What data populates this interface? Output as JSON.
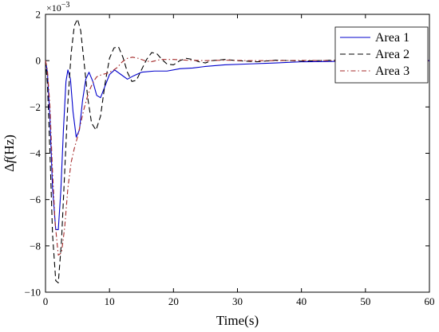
{
  "chart_data": {
    "type": "line",
    "title": "",
    "xlabel": "Time(s)",
    "ylabel_prefix": "Δ",
    "ylabel_italic": "f",
    "ylabel_suffix": "(Hz)",
    "y_scale_label": "×10",
    "y_scale_exponent": "−3",
    "xlim": [
      0,
      60
    ],
    "ylim": [
      -10,
      2
    ],
    "xticks": [
      0,
      10,
      20,
      30,
      40,
      50,
      60
    ],
    "xtick_labels": [
      "0",
      "10",
      "20",
      "30",
      "40",
      "50",
      "60"
    ],
    "yticks": [
      -10,
      -8,
      -6,
      -4,
      -2,
      0,
      2
    ],
    "ytick_labels": [
      "−10",
      "−8",
      "−6",
      "−4",
      "−2",
      "0",
      "2"
    ],
    "grid": false,
    "legend_position": "top-right",
    "series": [
      {
        "name": "Area 1",
        "color": "#0000cc",
        "style": "solid",
        "points": [
          [
            0,
            0
          ],
          [
            0.3,
            -0.5
          ],
          [
            0.7,
            -2.5
          ],
          [
            1.1,
            -5.5
          ],
          [
            1.6,
            -7.3
          ],
          [
            2.0,
            -7.3
          ],
          [
            2.4,
            -5.6
          ],
          [
            2.8,
            -3.0
          ],
          [
            3.2,
            -0.9
          ],
          [
            3.5,
            -0.4
          ],
          [
            3.9,
            -0.8
          ],
          [
            4.3,
            -2.2
          ],
          [
            4.8,
            -3.3
          ],
          [
            5.3,
            -3.0
          ],
          [
            5.8,
            -1.7
          ],
          [
            6.3,
            -0.8
          ],
          [
            6.8,
            -0.5
          ],
          [
            7.4,
            -0.9
          ],
          [
            8.0,
            -1.5
          ],
          [
            8.6,
            -1.6
          ],
          [
            9.3,
            -1.1
          ],
          [
            10.0,
            -0.6
          ],
          [
            10.8,
            -0.4
          ],
          [
            11.8,
            -0.6
          ],
          [
            12.8,
            -0.8
          ],
          [
            13.8,
            -0.65
          ],
          [
            15.0,
            -0.5
          ],
          [
            17,
            -0.45
          ],
          [
            19,
            -0.45
          ],
          [
            21,
            -0.35
          ],
          [
            23,
            -0.32
          ],
          [
            25,
            -0.25
          ],
          [
            28,
            -0.18
          ],
          [
            32,
            -0.14
          ],
          [
            36,
            -0.1
          ],
          [
            40,
            -0.05
          ],
          [
            44,
            -0.04
          ],
          [
            48,
            -0.02
          ],
          [
            52,
            0.0
          ],
          [
            56,
            0.0
          ],
          [
            60,
            0.0
          ]
        ]
      },
      {
        "name": "Area 2",
        "color": "#000000",
        "style": "dashed",
        "points": [
          [
            0,
            0
          ],
          [
            0.3,
            -1.0
          ],
          [
            0.7,
            -4.0
          ],
          [
            1.1,
            -7.5
          ],
          [
            1.6,
            -9.5
          ],
          [
            2.0,
            -9.6
          ],
          [
            2.5,
            -7.8
          ],
          [
            3.0,
            -4.8
          ],
          [
            3.5,
            -1.8
          ],
          [
            4.0,
            0.3
          ],
          [
            4.5,
            1.5
          ],
          [
            5.0,
            1.8
          ],
          [
            5.5,
            1.3
          ],
          [
            6.0,
            0.0
          ],
          [
            6.6,
            -1.6
          ],
          [
            7.2,
            -2.7
          ],
          [
            7.9,
            -3.0
          ],
          [
            8.6,
            -2.4
          ],
          [
            9.3,
            -1.0
          ],
          [
            10.0,
            0.1
          ],
          [
            10.7,
            0.55
          ],
          [
            11.4,
            0.6
          ],
          [
            12.1,
            0.15
          ],
          [
            12.8,
            -0.5
          ],
          [
            13.5,
            -0.9
          ],
          [
            14.2,
            -0.85
          ],
          [
            15.0,
            -0.4
          ],
          [
            15.8,
            0.05
          ],
          [
            16.6,
            0.35
          ],
          [
            17.4,
            0.3
          ],
          [
            18.2,
            0.05
          ],
          [
            19.0,
            -0.15
          ],
          [
            20.0,
            -0.18
          ],
          [
            21,
            0.0
          ],
          [
            22,
            0.1
          ],
          [
            23,
            0.05
          ],
          [
            24,
            -0.05
          ],
          [
            25,
            -0.1
          ],
          [
            26,
            0.0
          ],
          [
            28,
            0.05
          ],
          [
            30,
            0.0
          ],
          [
            33,
            -0.05
          ],
          [
            36,
            0.02
          ],
          [
            40,
            -0.02
          ],
          [
            45,
            0.02
          ],
          [
            50,
            -0.01
          ],
          [
            55,
            0.0
          ],
          [
            60,
            0.0
          ]
        ]
      },
      {
        "name": "Area 3",
        "color": "#a52a2a",
        "style": "dashdot",
        "points": [
          [
            0,
            0
          ],
          [
            0.3,
            -0.4
          ],
          [
            0.7,
            -2.0
          ],
          [
            1.1,
            -4.8
          ],
          [
            1.5,
            -7.0
          ],
          [
            2.0,
            -8.4
          ],
          [
            2.5,
            -8.3
          ],
          [
            3.0,
            -7.2
          ],
          [
            3.5,
            -5.5
          ],
          [
            4.0,
            -4.4
          ],
          [
            4.5,
            -3.8
          ],
          [
            5.0,
            -3.3
          ],
          [
            5.5,
            -2.7
          ],
          [
            6.0,
            -2.1
          ],
          [
            6.5,
            -1.6
          ],
          [
            7.0,
            -1.2
          ],
          [
            7.5,
            -0.9
          ],
          [
            8.0,
            -0.7
          ],
          [
            8.8,
            -0.6
          ],
          [
            9.6,
            -0.55
          ],
          [
            10.4,
            -0.45
          ],
          [
            11.2,
            -0.3
          ],
          [
            12.0,
            -0.05
          ],
          [
            12.8,
            0.1
          ],
          [
            13.6,
            0.15
          ],
          [
            14.5,
            0.1
          ],
          [
            15.5,
            0.0
          ],
          [
            16.5,
            -0.05
          ],
          [
            18,
            0.05
          ],
          [
            20,
            0.05
          ],
          [
            22,
            0.02
          ],
          [
            25,
            0.0
          ],
          [
            28,
            0.02
          ],
          [
            32,
            0.0
          ],
          [
            36,
            0.0
          ],
          [
            40,
            0.01
          ],
          [
            45,
            0.0
          ],
          [
            50,
            0.0
          ],
          [
            55,
            0.0
          ],
          [
            60,
            0.0
          ]
        ]
      }
    ]
  }
}
